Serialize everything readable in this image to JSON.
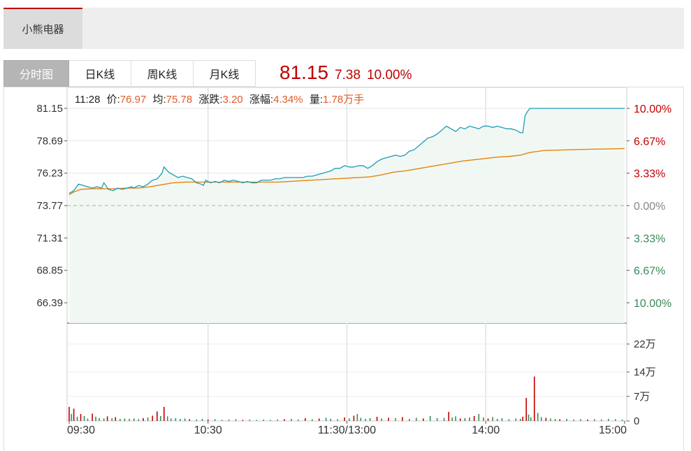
{
  "stock": {
    "name": "小熊电器"
  },
  "tabs": [
    {
      "label": "分时图",
      "active": true
    },
    {
      "label": "日K线",
      "active": false
    },
    {
      "label": "周K线",
      "active": false
    },
    {
      "label": "月K线",
      "active": false
    }
  ],
  "quote": {
    "price": "81.15",
    "change": "7.38",
    "change_pct": "10.00%"
  },
  "info": {
    "time": "11:28",
    "price_label": "价:",
    "price": "76.97",
    "avg_label": "均:",
    "avg": "75.78",
    "chg_label": "涨跌:",
    "chg": "3.20",
    "pct_label": "涨幅:",
    "pct": "4.34%",
    "vol_label": "量:",
    "vol": "1.78万手"
  },
  "colors": {
    "up": "#c00000",
    "down": "#3a8a5a",
    "price_line": "#1e9bb8",
    "avg_line": "#e8820c",
    "area": "#f1f8f3",
    "info_value": "#e05a2a"
  },
  "chart_data": {
    "type": "line",
    "prev_close": 73.77,
    "price_ticks": [
      "81.15",
      "78.69",
      "76.23",
      "73.77",
      "71.31",
      "68.85",
      "66.39"
    ],
    "pct_ticks": [
      "10.00%",
      "6.67%",
      "3.33%",
      "0.00%",
      "3.33%",
      "6.67%",
      "10.00%"
    ],
    "volume_ticks": [
      "22万",
      "14万",
      "7万",
      "0"
    ],
    "time_ticks": [
      "09:30",
      "10:30",
      "11:30/13:00",
      "14:00",
      "15:00"
    ],
    "price_series": [
      [
        0,
        74.7
      ],
      [
        4,
        74.9
      ],
      [
        8,
        75.4
      ],
      [
        12,
        75.3
      ],
      [
        16,
        75.2
      ],
      [
        20,
        75.1
      ],
      [
        24,
        75.2
      ],
      [
        28,
        75.1
      ],
      [
        30,
        75.5
      ],
      [
        34,
        75.0
      ],
      [
        38,
        74.9
      ],
      [
        42,
        75.1
      ],
      [
        46,
        75.0
      ],
      [
        50,
        75.1
      ],
      [
        54,
        75.2
      ],
      [
        56,
        75.1
      ],
      [
        60,
        75.3
      ],
      [
        64,
        75.2
      ],
      [
        68,
        75.4
      ],
      [
        72,
        75.7
      ],
      [
        76,
        75.8
      ],
      [
        80,
        76.2
      ],
      [
        82,
        76.7
      ],
      [
        84,
        76.5
      ],
      [
        86,
        76.3
      ],
      [
        90,
        76.1
      ],
      [
        94,
        75.9
      ],
      [
        98,
        76.0
      ],
      [
        102,
        75.9
      ],
      [
        106,
        75.8
      ],
      [
        110,
        75.5
      ],
      [
        114,
        75.4
      ],
      [
        116,
        75.3
      ],
      [
        118,
        75.7
      ],
      [
        122,
        75.5
      ],
      [
        126,
        75.6
      ],
      [
        130,
        75.5
      ],
      [
        134,
        75.7
      ],
      [
        138,
        75.6
      ],
      [
        142,
        75.7
      ],
      [
        146,
        75.6
      ],
      [
        150,
        75.5
      ],
      [
        154,
        75.6
      ],
      [
        158,
        75.5
      ],
      [
        162,
        75.5
      ],
      [
        166,
        75.7
      ],
      [
        170,
        75.7
      ],
      [
        174,
        75.7
      ],
      [
        178,
        75.8
      ],
      [
        182,
        75.8
      ],
      [
        186,
        75.9
      ],
      [
        190,
        75.9
      ],
      [
        194,
        75.9
      ],
      [
        198,
        75.9
      ],
      [
        202,
        75.9
      ],
      [
        206,
        76.0
      ],
      [
        210,
        76.0
      ],
      [
        214,
        76.1
      ],
      [
        218,
        76.2
      ],
      [
        222,
        76.3
      ],
      [
        226,
        76.4
      ],
      [
        230,
        76.6
      ],
      [
        234,
        76.6
      ],
      [
        238,
        76.8
      ],
      [
        242,
        76.7
      ],
      [
        246,
        76.7
      ],
      [
        250,
        76.8
      ],
      [
        254,
        76.8
      ],
      [
        258,
        76.6
      ],
      [
        262,
        76.8
      ],
      [
        266,
        77.1
      ],
      [
        270,
        77.3
      ],
      [
        274,
        77.4
      ],
      [
        278,
        77.5
      ],
      [
        282,
        77.6
      ],
      [
        286,
        77.5
      ],
      [
        290,
        77.6
      ],
      [
        294,
        77.9
      ],
      [
        298,
        78.0
      ],
      [
        302,
        78.3
      ],
      [
        306,
        78.6
      ],
      [
        310,
        78.9
      ],
      [
        314,
        79.0
      ],
      [
        318,
        79.2
      ],
      [
        322,
        79.5
      ],
      [
        326,
        79.8
      ],
      [
        330,
        79.6
      ],
      [
        334,
        79.4
      ],
      [
        338,
        79.7
      ],
      [
        342,
        79.6
      ],
      [
        346,
        79.8
      ],
      [
        350,
        79.7
      ],
      [
        354,
        79.6
      ],
      [
        358,
        79.8
      ],
      [
        362,
        79.8
      ],
      [
        366,
        79.7
      ],
      [
        370,
        79.8
      ],
      [
        374,
        79.7
      ],
      [
        378,
        79.6
      ],
      [
        382,
        79.6
      ],
      [
        386,
        79.5
      ],
      [
        390,
        79.3
      ],
      [
        392,
        79.3
      ],
      [
        394,
        80.6
      ],
      [
        396,
        80.9
      ],
      [
        398,
        81.15
      ],
      [
        420,
        81.15
      ],
      [
        480,
        81.15
      ]
    ],
    "avg_series": [
      [
        0,
        74.6
      ],
      [
        4,
        74.8
      ],
      [
        10,
        75.0
      ],
      [
        20,
        75.05
      ],
      [
        40,
        75.05
      ],
      [
        50,
        75.1
      ],
      [
        60,
        75.1
      ],
      [
        70,
        75.2
      ],
      [
        80,
        75.35
      ],
      [
        90,
        75.5
      ],
      [
        100,
        75.55
      ],
      [
        120,
        75.55
      ],
      [
        160,
        75.55
      ],
      [
        180,
        75.55
      ],
      [
        190,
        75.6
      ],
      [
        200,
        75.65
      ],
      [
        220,
        75.75
      ],
      [
        240,
        75.85
      ],
      [
        260,
        75.95
      ],
      [
        270,
        76.1
      ],
      [
        280,
        76.3
      ],
      [
        290,
        76.4
      ],
      [
        300,
        76.55
      ],
      [
        310,
        76.7
      ],
      [
        320,
        76.85
      ],
      [
        330,
        77.0
      ],
      [
        340,
        77.15
      ],
      [
        350,
        77.25
      ],
      [
        360,
        77.35
      ],
      [
        370,
        77.45
      ],
      [
        380,
        77.5
      ],
      [
        390,
        77.6
      ],
      [
        398,
        77.8
      ],
      [
        410,
        77.95
      ],
      [
        430,
        78.0
      ],
      [
        450,
        78.05
      ],
      [
        480,
        78.1
      ]
    ],
    "volume_series": [
      [
        0,
        4.0
      ],
      [
        2,
        2.0
      ],
      [
        4,
        3.5
      ],
      [
        7,
        1.2
      ],
      [
        10,
        2.0
      ],
      [
        13,
        1.4
      ],
      [
        16,
        0.7
      ],
      [
        20,
        2.1
      ],
      [
        23,
        1.2
      ],
      [
        26,
        0.8
      ],
      [
        30,
        0.7
      ],
      [
        33,
        1.3
      ],
      [
        37,
        0.8
      ],
      [
        40,
        1.1
      ],
      [
        44,
        0.6
      ],
      [
        48,
        0.7
      ],
      [
        52,
        0.6
      ],
      [
        56,
        0.7
      ],
      [
        60,
        0.5
      ],
      [
        64,
        0.8
      ],
      [
        68,
        1.0
      ],
      [
        72,
        1.5
      ],
      [
        76,
        2.7
      ],
      [
        79,
        1.4
      ],
      [
        82,
        4.0
      ],
      [
        85,
        1.3
      ],
      [
        88,
        0.7
      ],
      [
        92,
        0.8
      ],
      [
        96,
        0.6
      ],
      [
        100,
        0.7
      ],
      [
        104,
        0.5
      ],
      [
        110,
        0.4
      ],
      [
        115,
        0.6
      ],
      [
        120,
        0.4
      ],
      [
        126,
        0.5
      ],
      [
        132,
        0.3
      ],
      [
        138,
        0.4
      ],
      [
        144,
        0.5
      ],
      [
        150,
        0.3
      ],
      [
        156,
        0.4
      ],
      [
        162,
        0.3
      ],
      [
        168,
        0.4
      ],
      [
        174,
        0.3
      ],
      [
        180,
        0.4
      ],
      [
        186,
        0.5
      ],
      [
        192,
        0.6
      ],
      [
        198,
        0.4
      ],
      [
        204,
        0.8
      ],
      [
        210,
        0.5
      ],
      [
        216,
        0.7
      ],
      [
        222,
        0.9
      ],
      [
        226,
        0.6
      ],
      [
        232,
        0.5
      ],
      [
        238,
        1.0
      ],
      [
        242,
        0.7
      ],
      [
        246,
        1.5
      ],
      [
        249,
        2.0
      ],
      [
        252,
        0.9
      ],
      [
        256,
        0.6
      ],
      [
        260,
        0.8
      ],
      [
        266,
        1.2
      ],
      [
        270,
        0.7
      ],
      [
        276,
        0.9
      ],
      [
        282,
        0.8
      ],
      [
        288,
        1.1
      ],
      [
        294,
        0.6
      ],
      [
        300,
        0.9
      ],
      [
        306,
        0.7
      ],
      [
        312,
        1.4
      ],
      [
        318,
        0.8
      ],
      [
        324,
        0.9
      ],
      [
        328,
        2.6
      ],
      [
        331,
        1.0
      ],
      [
        334,
        1.3
      ],
      [
        338,
        0.7
      ],
      [
        342,
        0.8
      ],
      [
        346,
        1.0
      ],
      [
        350,
        1.4
      ],
      [
        354,
        2.0
      ],
      [
        358,
        1.0
      ],
      [
        362,
        0.7
      ],
      [
        366,
        1.1
      ],
      [
        370,
        0.6
      ],
      [
        374,
        0.8
      ],
      [
        380,
        0.5
      ],
      [
        386,
        0.7
      ],
      [
        390,
        0.6
      ],
      [
        392,
        1.2
      ],
      [
        395,
        6.6
      ],
      [
        397,
        1.8
      ],
      [
        399,
        1.0
      ],
      [
        402,
        12.7
      ],
      [
        405,
        2.3
      ],
      [
        408,
        1.1
      ],
      [
        412,
        0.9
      ],
      [
        416,
        0.7
      ],
      [
        420,
        0.6
      ],
      [
        424,
        0.5
      ],
      [
        430,
        0.6
      ],
      [
        436,
        0.4
      ],
      [
        442,
        0.5
      ],
      [
        448,
        0.4
      ],
      [
        454,
        0.5
      ],
      [
        460,
        0.4
      ],
      [
        466,
        0.6
      ],
      [
        472,
        0.5
      ],
      [
        478,
        0.4
      ]
    ],
    "volume_up_indices": [
      0,
      4,
      10,
      20,
      33,
      40,
      64,
      72,
      76,
      82,
      104,
      120,
      150,
      186,
      204,
      216,
      238,
      246,
      266,
      276,
      288,
      306,
      328,
      338,
      350,
      362,
      392,
      395,
      402,
      412,
      424,
      448
    ]
  }
}
